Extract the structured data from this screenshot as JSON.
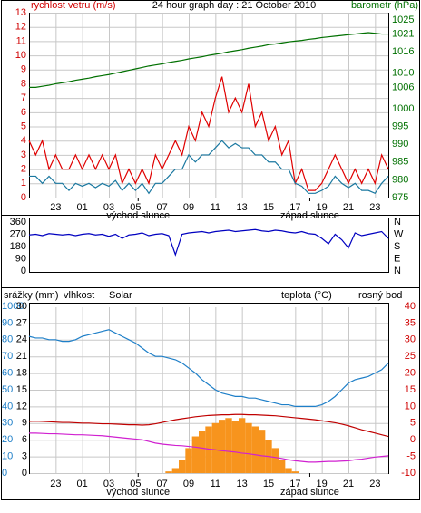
{
  "chart_data": [
    {
      "type": "line",
      "title": "24 hour graph day : 21 October 2010",
      "ylabel": "rychlost vetru (m/s)",
      "y2label": "barometr (hPa)",
      "x": [
        21,
        21.5,
        22,
        22.5,
        23,
        23.5,
        24,
        24.5,
        25,
        25.5,
        26,
        26.5,
        27,
        27.5,
        28,
        28.5,
        29,
        29.5,
        30,
        30.5,
        31,
        31.5,
        32,
        32.5,
        33,
        33.5,
        34,
        34.5,
        35,
        35.5,
        36,
        36.5,
        37,
        37.5,
        38,
        38.5,
        39,
        39.5,
        40,
        40.5,
        41,
        41.5,
        42,
        42.5,
        43,
        43.5,
        44,
        44.5,
        45,
        45.5,
        46,
        46.5,
        47,
        47.5,
        48
      ],
      "xlim": [
        21,
        48
      ],
      "xticks": [
        {
          "value": 23,
          "label": "23"
        },
        {
          "value": 25,
          "label": "01"
        },
        {
          "value": 27,
          "label": "03"
        },
        {
          "value": 29,
          "label": "05"
        },
        {
          "value": 31,
          "label": "07"
        },
        {
          "value": 33,
          "label": "09"
        },
        {
          "value": 35,
          "label": "11"
        },
        {
          "value": 37,
          "label": "13"
        },
        {
          "value": 39,
          "label": "15"
        },
        {
          "value": 41,
          "label": "17"
        },
        {
          "value": 43,
          "label": "19"
        },
        {
          "value": 45,
          "label": "21"
        },
        {
          "value": 47,
          "label": "23"
        }
      ],
      "ylim": [
        0,
        13
      ],
      "yticks": [
        0,
        1,
        2,
        3,
        4,
        5,
        6,
        7,
        8,
        9,
        10,
        11,
        12,
        13
      ],
      "y2lim": [
        975,
        1027
      ],
      "y2ticks": [
        975,
        980,
        985,
        990,
        995,
        1000,
        1006,
        1010,
        1016,
        1021,
        1025
      ],
      "grid": true,
      "annotations": [
        {
          "text": "východ slunce",
          "x": 29.2
        },
        {
          "text": "západ slunce",
          "x": 42.1
        }
      ],
      "series": [
        {
          "color": "#e00000",
          "axis": "y",
          "values": [
            4,
            3,
            4,
            2,
            3,
            2,
            2,
            3,
            2,
            3,
            2,
            3,
            2,
            3,
            1,
            2,
            1,
            2,
            1,
            3,
            2,
            3,
            4,
            3,
            5,
            4,
            6,
            5,
            7,
            8.5,
            6,
            7,
            6,
            8,
            5,
            6,
            4,
            5,
            3,
            4,
            1,
            2,
            0.5,
            0.5,
            1,
            2,
            3,
            2,
            1,
            2,
            1,
            2,
            1,
            3,
            2
          ]
        },
        {
          "color": "#1a78a0",
          "axis": "y",
          "values": [
            1.5,
            1.5,
            1,
            1.5,
            1,
            1,
            0.5,
            1,
            0.8,
            1,
            0.7,
            1,
            0.8,
            1.2,
            0.5,
            1,
            0.5,
            1,
            0.3,
            1,
            1,
            1.5,
            2,
            2,
            3,
            2.5,
            3,
            3,
            3.5,
            4,
            3.5,
            3.8,
            3.5,
            3.5,
            3,
            3,
            2.5,
            2.5,
            2,
            2,
            1,
            0.8,
            0.3,
            0.3,
            0.5,
            0.8,
            1.5,
            1,
            0.7,
            1,
            0.5,
            0.5,
            0.3,
            1,
            1.5
          ]
        },
        {
          "color": "#007000",
          "axis": "y2",
          "values": [
            1006,
            1006,
            1006.3,
            1006.6,
            1007,
            1007.3,
            1007.6,
            1008,
            1008.3,
            1008.6,
            1009,
            1009.3,
            1009.6,
            1010,
            1010.4,
            1010.8,
            1011.2,
            1011.6,
            1012,
            1012.3,
            1012.6,
            1013,
            1013.3,
            1013.6,
            1014,
            1014.3,
            1014.6,
            1015,
            1015.3,
            1015.6,
            1016,
            1016.3,
            1016.6,
            1017,
            1017.3,
            1017.6,
            1018,
            1018.2,
            1018.5,
            1018.8,
            1019,
            1019.2,
            1019.5,
            1019.7,
            1020,
            1020.2,
            1020.4,
            1020.6,
            1020.8,
            1021,
            1021.2,
            1021.4,
            1021.2,
            1021,
            1021
          ]
        }
      ]
    },
    {
      "type": "line",
      "x": [
        21,
        21.5,
        22,
        22.5,
        23,
        23.5,
        24,
        24.5,
        25,
        25.5,
        26,
        26.5,
        27,
        27.5,
        28,
        28.5,
        29,
        29.5,
        30,
        30.5,
        31,
        31.5,
        32,
        32.5,
        33,
        33.5,
        34,
        34.5,
        35,
        35.5,
        36,
        36.5,
        37,
        37.5,
        38,
        38.5,
        39,
        39.5,
        40,
        40.5,
        41,
        41.5,
        42,
        42.5,
        43,
        43.5,
        44,
        44.5,
        45,
        45.5,
        46,
        46.5,
        47,
        47.5,
        48
      ],
      "xlim": [
        21,
        48
      ],
      "ylim": [
        0,
        360
      ],
      "yticks": [
        0,
        90,
        180,
        270,
        360
      ],
      "y2lim": [
        0,
        360
      ],
      "y2ticks": [
        {
          "value": 0,
          "label": "N"
        },
        {
          "value": 90,
          "label": "E"
        },
        {
          "value": 180,
          "label": "S"
        },
        {
          "value": 270,
          "label": "W"
        },
        {
          "value": 360,
          "label": "N"
        }
      ],
      "grid": false,
      "series": [
        {
          "color": "#0000c0",
          "axis": "y",
          "values": [
            265,
            270,
            260,
            275,
            270,
            265,
            270,
            260,
            270,
            275,
            265,
            270,
            255,
            270,
            240,
            265,
            270,
            280,
            260,
            270,
            275,
            260,
            120,
            270,
            280,
            285,
            290,
            280,
            290,
            295,
            300,
            290,
            295,
            300,
            305,
            295,
            290,
            300,
            295,
            285,
            280,
            290,
            275,
            270,
            240,
            200,
            270,
            230,
            170,
            280,
            260,
            270,
            280,
            290,
            240
          ]
        }
      ]
    },
    {
      "type": "line",
      "ylabel": "srážky (mm)",
      "x": [
        21,
        21.5,
        22,
        22.5,
        23,
        23.5,
        24,
        24.5,
        25,
        25.5,
        26,
        26.5,
        27,
        27.5,
        28,
        28.5,
        29,
        29.5,
        30,
        30.5,
        31,
        31.5,
        32,
        32.5,
        33,
        33.5,
        34,
        34.5,
        35,
        35.5,
        36,
        36.5,
        37,
        37.5,
        38,
        38.5,
        39,
        39.5,
        40,
        40.5,
        41,
        41.5,
        42,
        42.5,
        43,
        43.5,
        44,
        44.5,
        45,
        45.5,
        46,
        46.5,
        47,
        47.5,
        48
      ],
      "xlim": [
        21,
        48
      ],
      "xticks": [
        {
          "value": 23,
          "label": "23"
        },
        {
          "value": 25,
          "label": "01"
        },
        {
          "value": 27,
          "label": "03"
        },
        {
          "value": 29,
          "label": "05"
        },
        {
          "value": 31,
          "label": "07"
        },
        {
          "value": 33,
          "label": "09"
        },
        {
          "value": 35,
          "label": "11"
        },
        {
          "value": 37,
          "label": "13"
        },
        {
          "value": 39,
          "label": "15"
        },
        {
          "value": 41,
          "label": "17"
        },
        {
          "value": 43,
          "label": "19"
        },
        {
          "value": 45,
          "label": "21"
        },
        {
          "value": 47,
          "label": "23"
        }
      ],
      "ylim": [
        0,
        100
      ],
      "yticks": [
        0,
        10,
        20,
        30,
        40,
        50,
        60,
        70,
        80,
        90
      ],
      "y2lim": [
        -10,
        40
      ],
      "y2ticks": [
        -10,
        -5,
        0,
        5,
        10,
        15,
        20,
        25,
        30,
        35,
        40
      ],
      "y3lim": [
        0,
        30
      ],
      "y3ticks": [
        0,
        3,
        6,
        9,
        12,
        15,
        18,
        21,
        24,
        27,
        30
      ],
      "y4lim": [
        0,
        1000
      ],
      "y4ticks": [
        1000
      ],
      "grid": true,
      "annotations": [
        {
          "text": "východ slunce",
          "x": 29.2
        },
        {
          "text": "západ slunce",
          "x": 42.1
        }
      ],
      "series": [
        {
          "name": "vlhkost",
          "color": "#1e7fc8",
          "axis": "y",
          "values": [
            82,
            81,
            81,
            80,
            80,
            79,
            79,
            80,
            82,
            83,
            84,
            85,
            86,
            84,
            82,
            80,
            78,
            75,
            72,
            70,
            70,
            69,
            68,
            66,
            63,
            60,
            56,
            53,
            50,
            48,
            47,
            46,
            46,
            45,
            45,
            44,
            43,
            42,
            41,
            41,
            40,
            40,
            40,
            40,
            41,
            43,
            46,
            50,
            54,
            56,
            57,
            58,
            60,
            62,
            66
          ]
        },
        {
          "name": "Solar",
          "color": "#f7941d",
          "axis": "y4",
          "type": "bar",
          "values": [
            0,
            0,
            0,
            0,
            0,
            0,
            0,
            0,
            0,
            0,
            0,
            0,
            0,
            0,
            0,
            0,
            0,
            0,
            0,
            0,
            0,
            10,
            30,
            80,
            150,
            220,
            250,
            280,
            300,
            320,
            330,
            310,
            330,
            300,
            280,
            260,
            200,
            150,
            80,
            30,
            10,
            0,
            0,
            0,
            0,
            0,
            0,
            0,
            0,
            0,
            0,
            0,
            0,
            0,
            0
          ]
        },
        {
          "name": "teplota (°C)",
          "color": "#c00000",
          "axis": "y2",
          "values": [
            5.5,
            5.6,
            5.5,
            5.4,
            5.3,
            5.2,
            5.2,
            5.1,
            5,
            5,
            4.9,
            4.8,
            4.8,
            4.7,
            4.6,
            4.5,
            4.5,
            4.4,
            4.5,
            4.8,
            5.2,
            5.6,
            6,
            6.3,
            6.6,
            6.9,
            7.1,
            7.3,
            7.4,
            7.5,
            7.5,
            7.6,
            7.6,
            7.5,
            7.5,
            7.4,
            7.3,
            7.2,
            7,
            6.8,
            6.6,
            6.4,
            6.2,
            6,
            5.7,
            5.4,
            5.1,
            4.7,
            4.2,
            3.6,
            3,
            2.5,
            2,
            1.5,
            1
          ]
        },
        {
          "name": "rosný bod",
          "color": "#d020d0",
          "axis": "y2",
          "values": [
            2,
            2,
            1.9,
            1.8,
            1.8,
            1.7,
            1.6,
            1.5,
            1.5,
            1.4,
            1.3,
            1.2,
            1,
            0.8,
            0.6,
            0.4,
            0.2,
            0,
            -0.5,
            -1,
            -1.3,
            -1.5,
            -1.7,
            -1.8,
            -2,
            -2.2,
            -2.5,
            -2.8,
            -3,
            -3.3,
            -3.5,
            -3.7,
            -4,
            -4.2,
            -4.5,
            -4.8,
            -5,
            -5.3,
            -5.6,
            -6,
            -6.3,
            -6.5,
            -6.7,
            -6.7,
            -6.6,
            -6.5,
            -6.5,
            -6.4,
            -6.3,
            -6,
            -5.8,
            -5.5,
            -5.2,
            -5,
            -4.8
          ]
        }
      ]
    }
  ]
}
